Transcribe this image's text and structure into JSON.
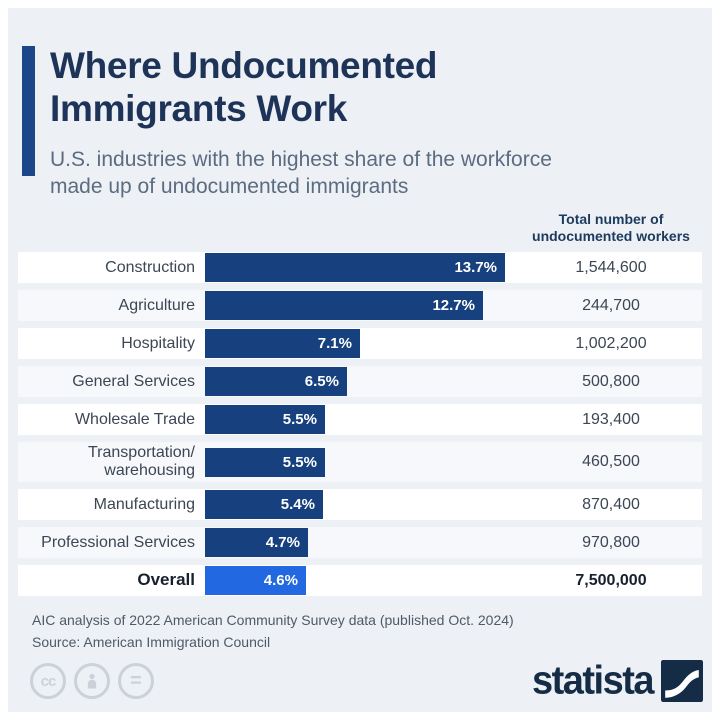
{
  "header": {
    "title_lines": [
      "Where Undocumented",
      "Immigrants Work"
    ],
    "subtitle_lines": [
      "U.S. industries with the highest share of the workforce",
      "made up of undocumented immigrants"
    ],
    "column_header": "Total number of undocumented workers"
  },
  "chart_data": {
    "type": "bar",
    "orientation": "horizontal",
    "title": "Where Undocumented Immigrants Work",
    "subtitle": "U.S. industries with the highest share of the workforce made up of undocumented immigrants",
    "categories": [
      "Construction",
      "Agriculture",
      "Hospitality",
      "General Services",
      "Wholesale Trade",
      "Transportation/warehousing",
      "Manufacturing",
      "Professional Services",
      "Overall"
    ],
    "series": [
      {
        "name": "Share of workforce (%)",
        "values": [
          13.7,
          12.7,
          7.1,
          6.5,
          5.5,
          5.5,
          5.4,
          4.7,
          4.6
        ]
      },
      {
        "name": "Total number of undocumented workers",
        "values": [
          1544600,
          244700,
          1002200,
          500800,
          193400,
          460500,
          870400,
          970800,
          7500000
        ]
      }
    ],
    "xlim": [
      0,
      13.7
    ],
    "grid": false,
    "legend": false,
    "highlight_category": "Overall"
  },
  "rows": [
    {
      "label": "Construction",
      "share_pct": 13.7,
      "share_label": "13.7%",
      "total": "1,544,600",
      "highlight": false
    },
    {
      "label": "Agriculture",
      "share_pct": 12.7,
      "share_label": "12.7%",
      "total": "244,700",
      "highlight": false
    },
    {
      "label": "Hospitality",
      "share_pct": 7.1,
      "share_label": "7.1%",
      "total": "1,002,200",
      "highlight": false
    },
    {
      "label": "General Services",
      "share_pct": 6.5,
      "share_label": "6.5%",
      "total": "500,800",
      "highlight": false
    },
    {
      "label": "Wholesale Trade",
      "share_pct": 5.5,
      "share_label": "5.5%",
      "total": "193,400",
      "highlight": false
    },
    {
      "label": "Transportation/\nwarehousing",
      "share_pct": 5.5,
      "share_label": "5.5%",
      "total": "460,500",
      "highlight": false
    },
    {
      "label": "Manufacturing",
      "share_pct": 5.4,
      "share_label": "5.4%",
      "total": "870,400",
      "highlight": false
    },
    {
      "label": "Professional Services",
      "share_pct": 4.7,
      "share_label": "4.7%",
      "total": "970,800",
      "highlight": false
    },
    {
      "label": "Overall",
      "share_pct": 4.6,
      "share_label": "4.6%",
      "total": "7,500,000",
      "highlight": true
    }
  ],
  "footer": {
    "note": "AIC analysis of 2022 American Community Survey data (published Oct. 2024)",
    "source": "Source: American Immigration Council",
    "license_icons": [
      "cc-icon",
      "attribution-person-icon",
      "no-derivatives-equals-icon"
    ],
    "cc_label": "cc",
    "nd_label": "=",
    "brand": "statista"
  },
  "colors": {
    "background": "#edf0f5",
    "bar_navy": "#17417e",
    "bar_highlight_blue": "#2268e0",
    "title_navy": "#1d3357",
    "accent_navy": "#1b4687",
    "brand_navy": "#152c47"
  }
}
